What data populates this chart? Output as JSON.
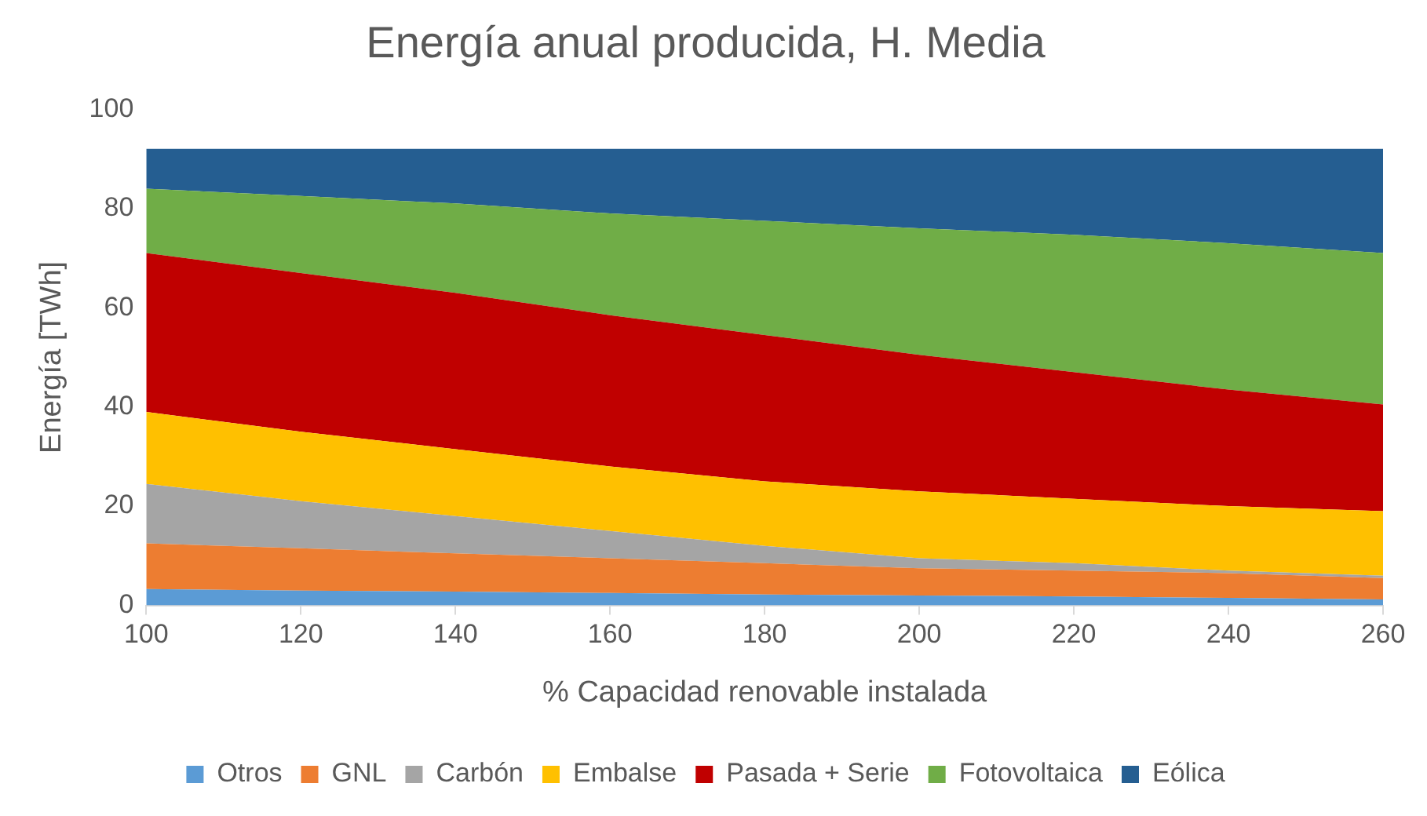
{
  "chart_data": {
    "type": "area",
    "title": "Energía anual producida, H. Media",
    "xlabel": "% Capacidad renovable instalada",
    "ylabel": "Energía [TWh]",
    "stacked": true,
    "x": [
      100,
      120,
      140,
      160,
      180,
      200,
      220,
      240,
      260
    ],
    "xlim": [
      100,
      260
    ],
    "xticks": [
      100,
      120,
      140,
      160,
      180,
      200,
      220,
      240,
      260
    ],
    "ylim": [
      0,
      100
    ],
    "yticks": [
      0,
      20,
      40,
      60,
      80,
      100
    ],
    "grid": false,
    "legend": "bottom",
    "series": [
      {
        "name": "Otros",
        "color": "#5b9bd5",
        "values": [
          3.3,
          3,
          2.8,
          2.5,
          2.2,
          2,
          1.8,
          1.5,
          1.2
        ]
      },
      {
        "name": "GNL",
        "color": "#ed7d31",
        "values": [
          9.2,
          8.5,
          7.7,
          7,
          6.3,
          5.5,
          5.2,
          5,
          4.3
        ]
      },
      {
        "name": "Carbón",
        "color": "#a5a5a5",
        "values": [
          12,
          9.5,
          7.5,
          5.5,
          3.5,
          2,
          1.5,
          0.5,
          0.5
        ]
      },
      {
        "name": "Embalse",
        "color": "#ffc000",
        "values": [
          14.5,
          14,
          13.5,
          13,
          13,
          13.5,
          13,
          13,
          13
        ]
      },
      {
        "name": "Pasada + Serie",
        "color": "#c00000",
        "values": [
          32,
          32,
          31.5,
          30.5,
          29.5,
          27.5,
          25.5,
          23.5,
          21.5
        ]
      },
      {
        "name": "Fotovoltaica",
        "color": "#70ad47",
        "values": [
          13,
          15.5,
          18,
          20.5,
          23,
          25.5,
          27.7,
          29.5,
          30.5
        ]
      },
      {
        "name": "Eólica",
        "color": "#255e91",
        "values": [
          8,
          9.5,
          11,
          13,
          14.5,
          16,
          17.3,
          19,
          21
        ]
      }
    ]
  }
}
